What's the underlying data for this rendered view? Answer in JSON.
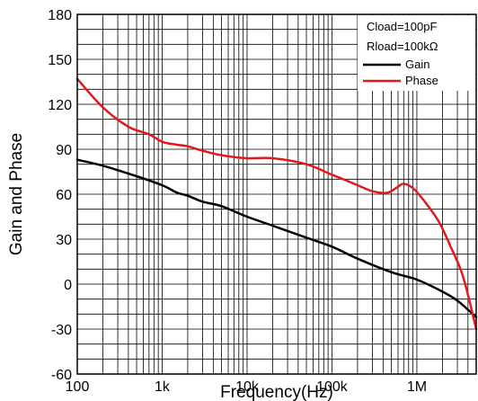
{
  "chart_data": {
    "type": "line",
    "xlabel": "Frequency(Hz)",
    "ylabel": "Gain and Phase",
    "x_scale": "log",
    "xlim": [
      100,
      5000000
    ],
    "ylim": [
      -60,
      180
    ],
    "x_ticks": [
      {
        "value": 100,
        "label": "100"
      },
      {
        "value": 1000,
        "label": "1k"
      },
      {
        "value": 10000,
        "label": "10k"
      },
      {
        "value": 100000,
        "label": "100k"
      },
      {
        "value": 1000000,
        "label": "1M"
      }
    ],
    "y_ticks": [
      {
        "value": -60,
        "label": "-60"
      },
      {
        "value": -30,
        "label": "-30"
      },
      {
        "value": 0,
        "label": "0"
      },
      {
        "value": 30,
        "label": "30"
      },
      {
        "value": 60,
        "label": "60"
      },
      {
        "value": 90,
        "label": "90"
      },
      {
        "value": 120,
        "label": "120"
      },
      {
        "value": 150,
        "label": "150"
      },
      {
        "value": 180,
        "label": "180"
      }
    ],
    "grid": true,
    "legend": {
      "placement": "top-right",
      "header": [
        "Cload=100pF",
        "Rload=100kΩ"
      ],
      "entries": [
        {
          "label": "Gain",
          "color": "#000000"
        },
        {
          "label": "Phase",
          "color": "#e0191e"
        }
      ]
    },
    "series": [
      {
        "name": "Gain",
        "color": "#000000",
        "x": [
          100,
          200,
          500,
          1000,
          1500,
          2000,
          3000,
          5000,
          10000,
          20000,
          50000,
          100000,
          200000,
          500000,
          1000000,
          2000000,
          3000000,
          5000000
        ],
        "y": [
          83,
          79,
          72,
          66,
          61,
          59,
          55,
          52,
          45,
          39,
          31,
          25,
          17,
          8,
          3,
          -5,
          -11,
          -22
        ]
      },
      {
        "name": "Phase",
        "color": "#e0191e",
        "x": [
          100,
          200,
          400,
          700,
          1000,
          1500,
          2000,
          3000,
          5000,
          10000,
          20000,
          50000,
          100000,
          150000,
          200000,
          300000,
          450000,
          600000,
          700000,
          900000,
          1200000,
          1800000,
          2500000,
          3500000,
          5000000
        ],
        "y": [
          137,
          118,
          105,
          100,
          95,
          93,
          92,
          89,
          86,
          84,
          84,
          80,
          73,
          69,
          66,
          62,
          61,
          65,
          67,
          64,
          56,
          42,
          25,
          5,
          -30
        ]
      }
    ]
  }
}
